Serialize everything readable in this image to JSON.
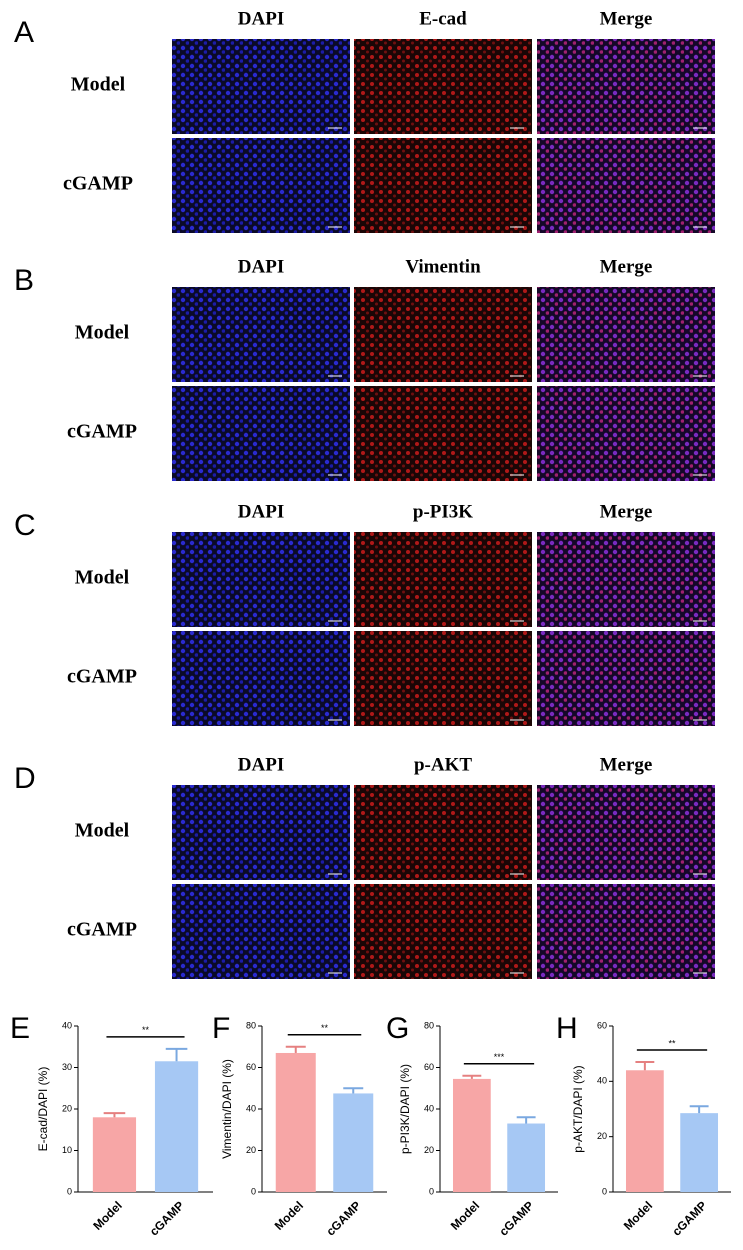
{
  "panels": [
    {
      "letter": "A",
      "columns": [
        "DAPI",
        "E-cad",
        "Merge"
      ],
      "rows": [
        "Model",
        "cGAMP"
      ]
    },
    {
      "letter": "B",
      "columns": [
        "DAPI",
        "Vimentin",
        "Merge"
      ],
      "rows": [
        "Model",
        "cGAMP"
      ]
    },
    {
      "letter": "C",
      "columns": [
        "DAPI",
        "p-PI3K",
        "Merge"
      ],
      "rows": [
        "Model",
        "cGAMP"
      ]
    },
    {
      "letter": "D",
      "columns": [
        "DAPI",
        "p-AKT",
        "Merge"
      ],
      "rows": [
        "Model",
        "cGAMP"
      ]
    }
  ],
  "chart_data": [
    {
      "type": "bar",
      "letter": "E",
      "ylabel": "E-cad/DAPI (%)",
      "categories": [
        "Model",
        "cGAMP"
      ],
      "values": [
        18,
        31.5
      ],
      "errors": [
        1,
        3
      ],
      "colors": [
        "#f7a6a6",
        "#a6c8f4"
      ],
      "ylim": [
        0,
        40
      ],
      "yticks": [
        0,
        10,
        20,
        30,
        40
      ],
      "annotation": "**"
    },
    {
      "type": "bar",
      "letter": "F",
      "ylabel": "Vimentin/DAPI (%)",
      "categories": [
        "Model",
        "cGAMP"
      ],
      "values": [
        67,
        47.5
      ],
      "errors": [
        3,
        2.5
      ],
      "colors": [
        "#f7a6a6",
        "#a6c8f4"
      ],
      "ylim": [
        0,
        80
      ],
      "yticks": [
        0,
        20,
        40,
        60,
        80
      ],
      "annotation": "**"
    },
    {
      "type": "bar",
      "letter": "G",
      "ylabel": "p-PI3K/DAPI (%)",
      "categories": [
        "Model",
        "cGAMP"
      ],
      "values": [
        54.5,
        33
      ],
      "errors": [
        1.5,
        3
      ],
      "colors": [
        "#f7a6a6",
        "#a6c8f4"
      ],
      "ylim": [
        0,
        80
      ],
      "yticks": [
        0,
        20,
        40,
        60,
        80
      ],
      "annotation": "***"
    },
    {
      "type": "bar",
      "letter": "H",
      "ylabel": "p-AKT/DAPI (%)",
      "categories": [
        "Model",
        "cGAMP"
      ],
      "values": [
        44,
        28.5
      ],
      "errors": [
        3,
        2.5
      ],
      "colors": [
        "#f7a6a6",
        "#a6c8f4"
      ],
      "ylim": [
        0,
        60
      ],
      "yticks": [
        0,
        20,
        40,
        60
      ],
      "annotation": "**"
    }
  ]
}
